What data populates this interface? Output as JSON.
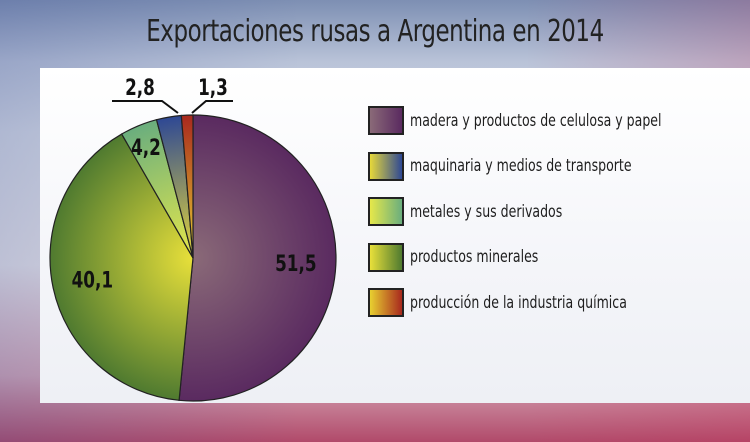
{
  "chart_data": {
    "type": "pie",
    "title": "Exportaciones rusas a Argentina en 2014",
    "categories": [
      "madera y productos de celulosa y papel",
      "productos minerales",
      "metales y sus derivados",
      "maquinaria y medios de transporte",
      "producción de la industria química"
    ],
    "values": [
      51.5,
      40.1,
      4.2,
      2.8,
      1.3
    ],
    "data_labels": [
      "51,5",
      "40,1",
      "4,2",
      "2,8",
      "1,3"
    ],
    "colors": [
      [
        "#8a6a78",
        "#5a2a60"
      ],
      [
        "#e8e03a",
        "#4f7a30"
      ],
      [
        "#e6e84a",
        "#6aae7e"
      ],
      [
        "#e6d83a",
        "#2e4894"
      ],
      [
        "#e8d030",
        "#a8281e"
      ]
    ],
    "legend": {
      "placement": "right",
      "items": [
        {
          "label": "madera y productos de celulosa y papel",
          "colors": [
            "#8a6a78",
            "#5a2a60"
          ]
        },
        {
          "label": "maquinaria y medios de transporte",
          "colors": [
            "#e6d83a",
            "#2e4894"
          ]
        },
        {
          "label": "metales y sus derivados",
          "colors": [
            "#e6e84a",
            "#6aae7e"
          ]
        },
        {
          "label": "productos minerales",
          "colors": [
            "#e8e03a",
            "#4f7a30"
          ]
        },
        {
          "label": "producción de la industria química",
          "colors": [
            "#e8d030",
            "#a8281e"
          ]
        }
      ]
    }
  }
}
